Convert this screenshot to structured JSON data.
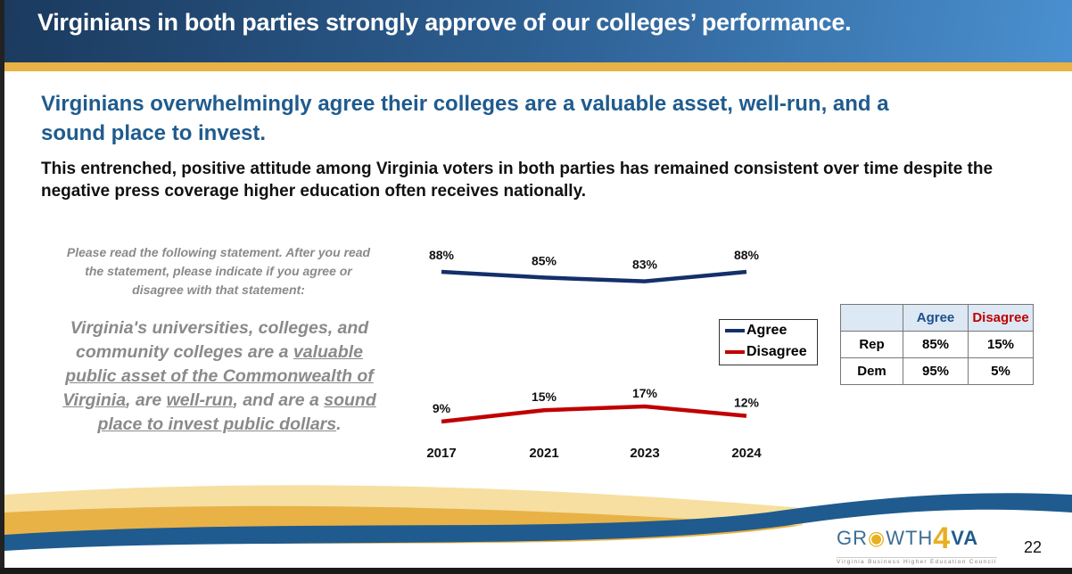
{
  "header": {
    "title": "Virginians in both parties strongly approve of our colleges’ performance."
  },
  "subtitle": "Virginians overwhelmingly agree their colleges are a valuable asset, well-run, and a sound place to invest.",
  "lead": "This entrenched, positive attitude among Virginia voters in both parties has remained consistent over time despite the negative press coverage higher education often receives nationally.",
  "question": "Please read the following statement.  After you read the statement, please indicate if you agree or disagree with that statement:",
  "statement": {
    "p1": "Virginia's universities, colleges, and community colleges are a ",
    "u1": "valuable public asset of the Commonwealth of Virginia",
    "p2": ", are ",
    "u2": "well-run",
    "p3": ", and are a ",
    "u3": "sound place to invest public dollars",
    "p4": "."
  },
  "chart_data": {
    "type": "line",
    "categories": [
      "2017",
      "2021",
      "2023",
      "2024"
    ],
    "series": [
      {
        "name": "Agree",
        "values": [
          88,
          85,
          83,
          88
        ],
        "labels": [
          "88%",
          "85%",
          "83%",
          "88%"
        ],
        "color": "#14306a"
      },
      {
        "name": "Disagree",
        "values": [
          9,
          15,
          17,
          12
        ],
        "labels": [
          "9%",
          "15%",
          "17%",
          "12%"
        ],
        "color": "#c00000"
      }
    ],
    "legend": "right"
  },
  "party_table": {
    "headers": [
      "",
      "Agree",
      "Disagree"
    ],
    "rows": [
      [
        "Rep",
        "85%",
        "15%"
      ],
      [
        "Dem",
        "95%",
        "5%"
      ]
    ],
    "agree_color": "#1f4e8c",
    "disagree_color": "#c00000"
  },
  "footer": {
    "logo_text": "GROWTH4VA",
    "logo_subtitle": "Virginia Business Higher Education Council",
    "page_number": "22"
  }
}
